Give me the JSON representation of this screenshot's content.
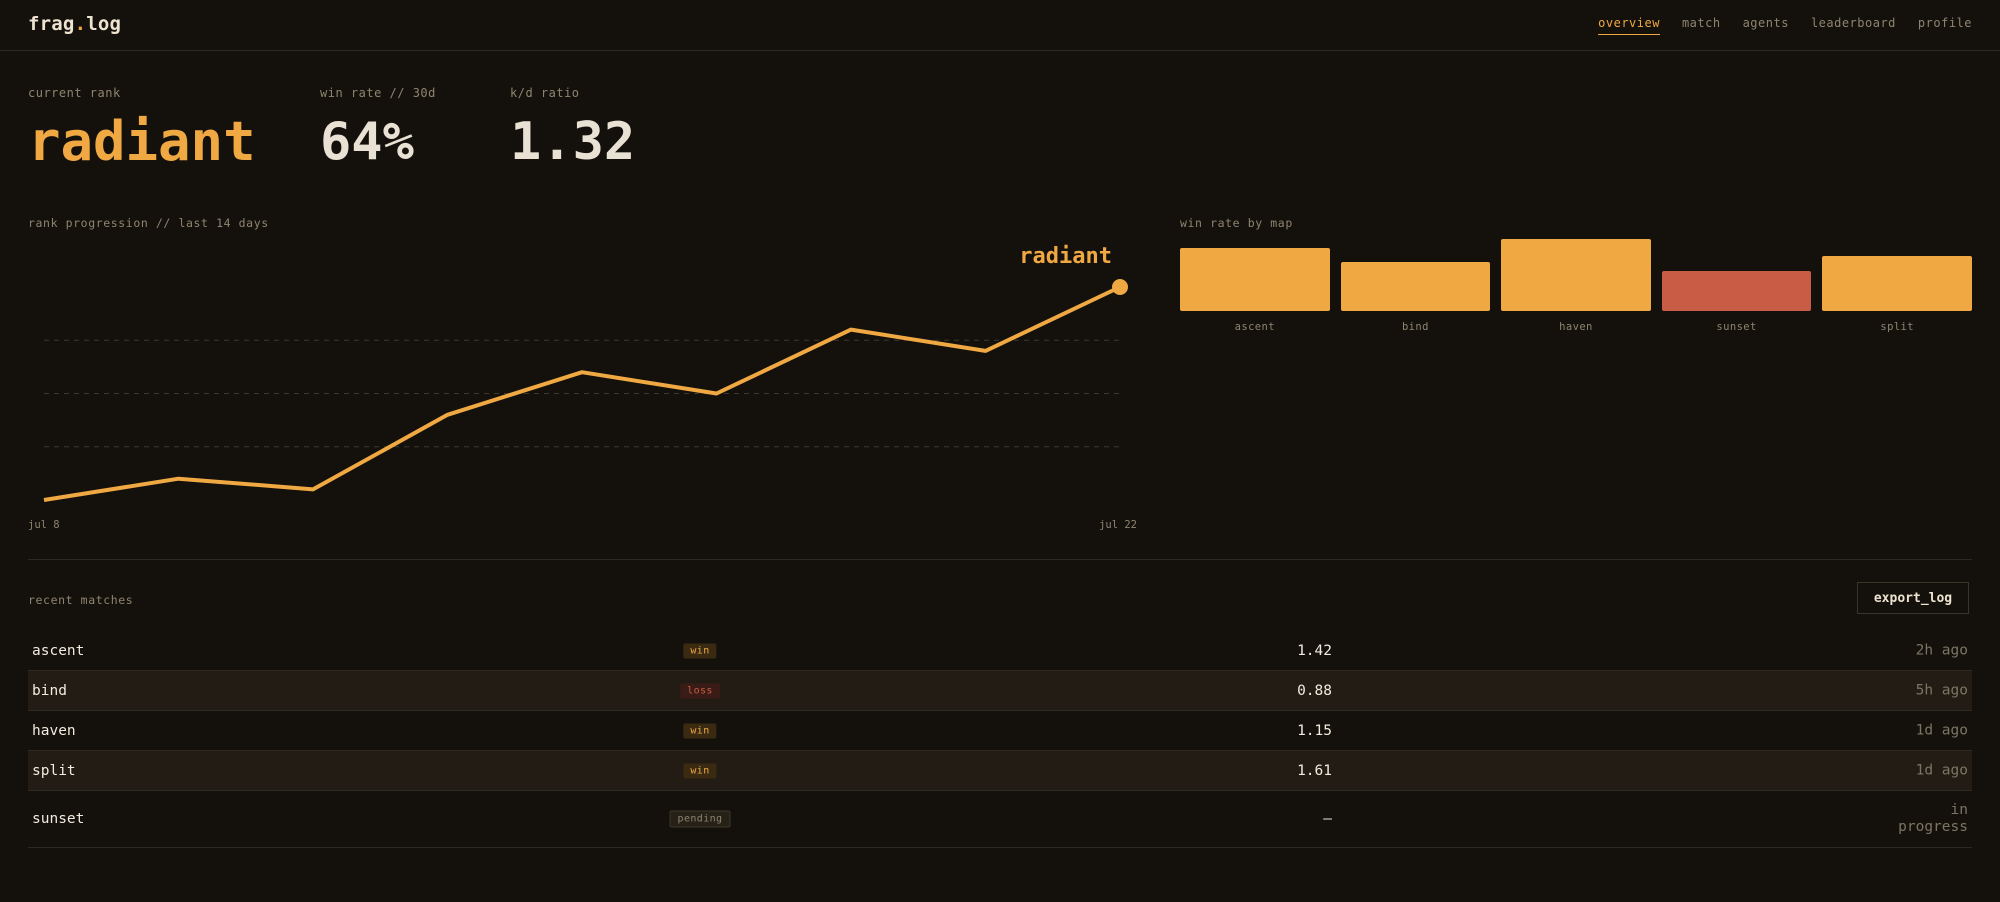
{
  "header": {
    "logo_prefix": "frag",
    "logo_dot": ".",
    "logo_suffix": "log",
    "nav": [
      {
        "label": "overview",
        "active": true
      },
      {
        "label": "match",
        "active": false
      },
      {
        "label": "agents",
        "active": false
      },
      {
        "label": "leaderboard",
        "active": false
      },
      {
        "label": "profile",
        "active": false
      }
    ]
  },
  "stats": {
    "rank": {
      "label": "current rank",
      "value": "radiant"
    },
    "winrate": {
      "label": "win rate // 30d",
      "value": "64%"
    },
    "kd": {
      "label": "k/d ratio",
      "value": "1.32"
    }
  },
  "colors": {
    "accent": "#f0a843",
    "loss": "#c95c44",
    "background": "#14110c"
  },
  "chart_data": [
    {
      "type": "line",
      "title": "rank progression // last 14 days",
      "x_start_label": "jul 8",
      "x_end_label": "jul 22",
      "end_label": "radiant",
      "values": [
        0.0,
        0.4,
        0.2,
        1.6,
        2.4,
        2.0,
        3.2,
        2.8,
        4.0
      ],
      "ylim": [
        0,
        4
      ],
      "grid_levels": [
        1,
        2,
        3
      ]
    },
    {
      "type": "bar",
      "title": "win rate by map",
      "categories": [
        "ascent",
        "bind",
        "haven",
        "sunset",
        "split"
      ],
      "values": [
        0.88,
        0.68,
        1.0,
        0.55,
        0.77
      ],
      "highlight": [
        "normal",
        "normal",
        "normal",
        "low",
        "normal"
      ]
    }
  ],
  "matches": {
    "title": "recent matches",
    "export_label": "export_log",
    "rows": [
      {
        "map": "ascent",
        "result": "win",
        "kd": "1.42",
        "time": "2h ago"
      },
      {
        "map": "bind",
        "result": "loss",
        "kd": "0.88",
        "time": "5h ago"
      },
      {
        "map": "haven",
        "result": "win",
        "kd": "1.15",
        "time": "1d ago"
      },
      {
        "map": "split",
        "result": "win",
        "kd": "1.61",
        "time": "1d ago"
      },
      {
        "map": "sunset",
        "result": "pending",
        "kd": "—",
        "time": "in progress"
      }
    ]
  }
}
